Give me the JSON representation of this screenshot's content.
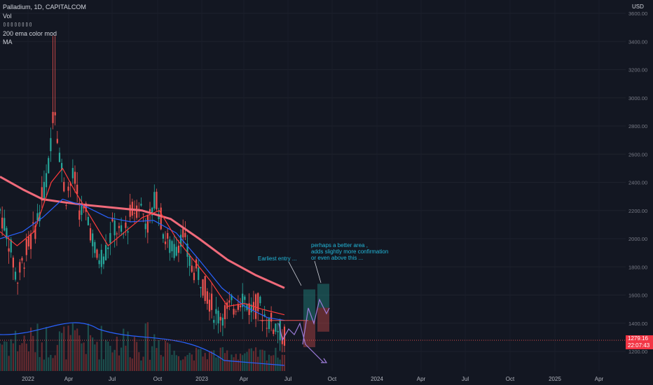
{
  "legend": {
    "symbol": "Palladium, 1D, CAPITALCOM",
    "vol": "Vol",
    "boxes": "▯▯▯▯▯▯▯▯",
    "ema": "200 ema color mod",
    "ma": "MA"
  },
  "currency": "USD",
  "last_price": {
    "price": "1279.16",
    "countdown": "22:07:43",
    "color": "#f23645"
  },
  "annotations": {
    "earliest_entry": "Earliest entry ...",
    "better_area": [
      "perhaps a better area ,",
      "adds slightly more confirmation",
      "or even above this ..."
    ]
  },
  "colors": {
    "background": "#131722",
    "up": "#26a69a",
    "down": "#ef5350",
    "ema200": "#f06a7a",
    "ma_blue": "#2962ff",
    "ma_red": "#ff3b3b",
    "annotation": "#22b7d9",
    "projection": "#9c7bd8"
  },
  "chart_data": {
    "type": "candlestick",
    "x_tick_labels": [
      "2022",
      "Apr",
      "Jul",
      "Oct",
      "2023",
      "Apr",
      "Jul",
      "Oct",
      "2024",
      "Apr",
      "Jul",
      "Oct",
      "2025",
      "Apr"
    ],
    "y_tick_labels": [
      "1200.00",
      "1400.00",
      "1600.00",
      "1800.00",
      "2000.00",
      "2200.00",
      "2400.00",
      "2600.00",
      "2800.00",
      "3000.00",
      "3200.00",
      "3400.00",
      "3600.00"
    ],
    "ylim": [
      1090,
      3660
    ],
    "y_scale": "linear",
    "last_close": 1279.16,
    "key_prices": {
      "2022_spike_high": 3440,
      "2022_march_close_high": 2980,
      "oct_2022_high": 2400,
      "apr_2023_high": 1640,
      "jun_2023_low": 1240,
      "entry_line": 1420,
      "ema200_end": 1650
    },
    "price_path": [
      {
        "t": 0.0,
        "p": 2200
      },
      {
        "t": 0.03,
        "p": 2000
      },
      {
        "t": 0.06,
        "p": 1700
      },
      {
        "t": 0.09,
        "p": 1900
      },
      {
        "t": 0.12,
        "p": 2050
      },
      {
        "t": 0.15,
        "p": 2300
      },
      {
        "t": 0.17,
        "p": 2500
      },
      {
        "t": 0.19,
        "p": 3000
      },
      {
        "t": 0.21,
        "p": 2600
      },
      {
        "t": 0.23,
        "p": 2300
      },
      {
        "t": 0.26,
        "p": 2450
      },
      {
        "t": 0.28,
        "p": 2200
      },
      {
        "t": 0.31,
        "p": 2150
      },
      {
        "t": 0.34,
        "p": 1850
      },
      {
        "t": 0.37,
        "p": 1900
      },
      {
        "t": 0.4,
        "p": 2100
      },
      {
        "t": 0.43,
        "p": 2000
      },
      {
        "t": 0.46,
        "p": 2180
      },
      {
        "t": 0.49,
        "p": 2250
      },
      {
        "t": 0.52,
        "p": 2100
      },
      {
        "t": 0.55,
        "p": 2300
      },
      {
        "t": 0.58,
        "p": 2000
      },
      {
        "t": 0.61,
        "p": 1900
      },
      {
        "t": 0.64,
        "p": 2050
      },
      {
        "t": 0.67,
        "p": 1800
      },
      {
        "t": 0.7,
        "p": 1750
      },
      {
        "t": 0.73,
        "p": 1600
      },
      {
        "t": 0.76,
        "p": 1450
      },
      {
        "t": 0.79,
        "p": 1480
      },
      {
        "t": 0.82,
        "p": 1520
      },
      {
        "t": 0.85,
        "p": 1600
      },
      {
        "t": 0.88,
        "p": 1500
      },
      {
        "t": 0.91,
        "p": 1530
      },
      {
        "t": 0.94,
        "p": 1420
      },
      {
        "t": 0.97,
        "p": 1380
      },
      {
        "t": 1.0,
        "p": 1300
      }
    ],
    "ema200": [
      {
        "t": 0.0,
        "p": 2440
      },
      {
        "t": 0.08,
        "p": 2350
      },
      {
        "t": 0.15,
        "p": 2280
      },
      {
        "t": 0.22,
        "p": 2260
      },
      {
        "t": 0.3,
        "p": 2240
      },
      {
        "t": 0.4,
        "p": 2220
      },
      {
        "t": 0.5,
        "p": 2200
      },
      {
        "t": 0.6,
        "p": 2140
      },
      {
        "t": 0.7,
        "p": 2000
      },
      {
        "t": 0.8,
        "p": 1850
      },
      {
        "t": 0.9,
        "p": 1740
      },
      {
        "t": 1.0,
        "p": 1650
      }
    ],
    "ma_blue": [
      {
        "t": 0.0,
        "p": 2000
      },
      {
        "t": 0.08,
        "p": 2050
      },
      {
        "t": 0.15,
        "p": 2150
      },
      {
        "t": 0.22,
        "p": 2280
      },
      {
        "t": 0.3,
        "p": 2230
      },
      {
        "t": 0.38,
        "p": 2150
      },
      {
        "t": 0.46,
        "p": 2120
      },
      {
        "t": 0.54,
        "p": 2130
      },
      {
        "t": 0.62,
        "p": 2040
      },
      {
        "t": 0.7,
        "p": 1850
      },
      {
        "t": 0.78,
        "p": 1650
      },
      {
        "t": 0.86,
        "p": 1520
      },
      {
        "t": 0.94,
        "p": 1440
      },
      {
        "t": 1.0,
        "p": 1420
      }
    ],
    "ma_red": [
      {
        "t": 0.0,
        "p": 2050
      },
      {
        "t": 0.06,
        "p": 1950
      },
      {
        "t": 0.12,
        "p": 2050
      },
      {
        "t": 0.18,
        "p": 2400
      },
      {
        "t": 0.22,
        "p": 2500
      },
      {
        "t": 0.26,
        "p": 2350
      },
      {
        "t": 0.32,
        "p": 2150
      },
      {
        "t": 0.38,
        "p": 1950
      },
      {
        "t": 0.44,
        "p": 2050
      },
      {
        "t": 0.5,
        "p": 2150
      },
      {
        "t": 0.56,
        "p": 2200
      },
      {
        "t": 0.62,
        "p": 2000
      },
      {
        "t": 0.68,
        "p": 1850
      },
      {
        "t": 0.74,
        "p": 1700
      },
      {
        "t": 0.8,
        "p": 1520
      },
      {
        "t": 0.86,
        "p": 1540
      },
      {
        "t": 0.92,
        "p": 1500
      },
      {
        "t": 1.0,
        "p": 1460
      }
    ],
    "positions": [
      {
        "name": "earliest-entry",
        "entry": 1420,
        "target": 1640,
        "stop": 1230
      },
      {
        "name": "better-area",
        "entry": 1510,
        "target": 1680,
        "stop": 1340
      }
    ]
  }
}
